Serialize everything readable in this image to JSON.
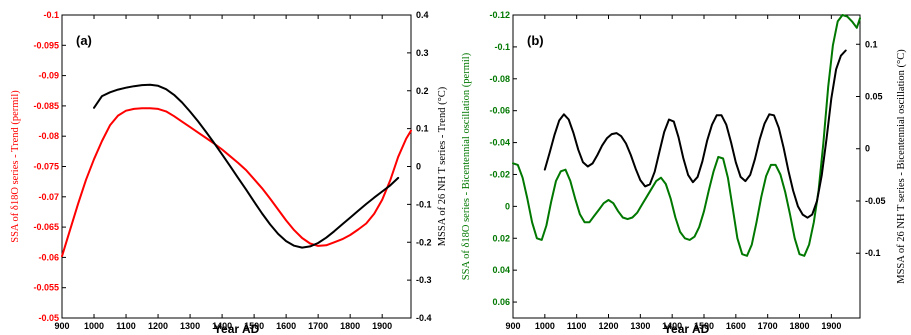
{
  "chart_data": [
    {
      "type": "line",
      "panel_label": "(a)",
      "xlabel": "Year AD",
      "ylabel_left": "SSA of δ18O series - Trend (permil)",
      "ylabel_right": "MSSA of 26 NH T series - Trend (°C)",
      "x_range": [
        900,
        1990
      ],
      "xticks": [
        900,
        1000,
        1100,
        1200,
        1300,
        1400,
        1500,
        1600,
        1700,
        1800,
        1900
      ],
      "xtick_labels": [
        "900",
        "1000",
        "1100",
        "1200",
        "1300",
        "1400",
        "1500",
        "1600",
        "1700",
        "1800",
        "1900"
      ],
      "left_axis": {
        "color": "#ff0000",
        "reversed": true,
        "ylim": [
          -0.1,
          -0.05
        ],
        "ticks": [
          -0.1,
          -0.095,
          -0.09,
          -0.085,
          -0.08,
          -0.075,
          -0.07,
          -0.065,
          -0.06,
          -0.055,
          -0.05
        ],
        "tick_labels": [
          "-0.1",
          "-0.095",
          "-0.09",
          "-0.085",
          "-0.08",
          "-0.075",
          "-0.07",
          "-0.065",
          "-0.06",
          "-0.055",
          "-0.05"
        ]
      },
      "right_axis": {
        "color": "#000000",
        "ylim": [
          -0.4,
          0.4
        ],
        "ticks": [
          -0.4,
          -0.3,
          -0.2,
          -0.1,
          0,
          0.1,
          0.2,
          0.3,
          0.4
        ],
        "tick_labels": [
          "-0.4",
          "-0.3",
          "-0.2",
          "-0.1",
          "0",
          "0.1",
          "0.2",
          "0.3",
          "0.4"
        ]
      },
      "series": [
        {
          "axis": "left",
          "color": "#ff0000",
          "x": [
            900,
            925,
            950,
            975,
            1000,
            1025,
            1050,
            1075,
            1100,
            1125,
            1150,
            1175,
            1200,
            1225,
            1250,
            1275,
            1300,
            1325,
            1350,
            1375,
            1400,
            1425,
            1450,
            1475,
            1500,
            1525,
            1550,
            1575,
            1600,
            1625,
            1650,
            1675,
            1700,
            1725,
            1750,
            1775,
            1800,
            1825,
            1850,
            1875,
            1900,
            1925,
            1950,
            1975,
            1990
          ],
          "y": [
            -0.0602,
            -0.0645,
            -0.0688,
            -0.0728,
            -0.0762,
            -0.0792,
            -0.0818,
            -0.0834,
            -0.0842,
            -0.0845,
            -0.0846,
            -0.0846,
            -0.0845,
            -0.0841,
            -0.0833,
            -0.0824,
            -0.0815,
            -0.0806,
            -0.0797,
            -0.0788,
            -0.0778,
            -0.0767,
            -0.0756,
            -0.0744,
            -0.0729,
            -0.0714,
            -0.0697,
            -0.0679,
            -0.0661,
            -0.0645,
            -0.0632,
            -0.0623,
            -0.0619,
            -0.062,
            -0.0625,
            -0.063,
            -0.0637,
            -0.0646,
            -0.0656,
            -0.0672,
            -0.0695,
            -0.0727,
            -0.0766,
            -0.0796,
            -0.0809
          ]
        },
        {
          "axis": "right",
          "color": "#000000",
          "x": [
            1000,
            1025,
            1050,
            1075,
            1100,
            1125,
            1150,
            1175,
            1200,
            1225,
            1250,
            1275,
            1300,
            1325,
            1350,
            1375,
            1400,
            1425,
            1450,
            1475,
            1500,
            1525,
            1550,
            1575,
            1600,
            1625,
            1650,
            1675,
            1700,
            1725,
            1750,
            1775,
            1800,
            1825,
            1850,
            1875,
            1900,
            1925,
            1950
          ],
          "y": [
            0.155,
            0.186,
            0.196,
            0.203,
            0.208,
            0.212,
            0.215,
            0.216,
            0.213,
            0.204,
            0.189,
            0.169,
            0.145,
            0.119,
            0.091,
            0.062,
            0.032,
            0.001,
            -0.03,
            -0.061,
            -0.093,
            -0.124,
            -0.153,
            -0.178,
            -0.197,
            -0.209,
            -0.214,
            -0.211,
            -0.202,
            -0.188,
            -0.171,
            -0.153,
            -0.135,
            -0.117,
            -0.099,
            -0.082,
            -0.066,
            -0.05,
            -0.03
          ]
        }
      ]
    },
    {
      "type": "line",
      "panel_label": "(b)",
      "xlabel": "Year AD",
      "ylabel_left": "SSA of δ18O series - Bicentennial oscillation (permil)",
      "ylabel_right": "MSSA of 26 NH T series - Bicentennial oscillation (°C)",
      "x_range": [
        900,
        1990
      ],
      "xticks": [
        900,
        1000,
        1100,
        1200,
        1300,
        1400,
        1500,
        1600,
        1700,
        1800,
        1900
      ],
      "xtick_labels": [
        "900",
        "1000",
        "1100",
        "1200",
        "1300",
        "1400",
        "1500",
        "1600",
        "1700",
        "1800",
        "1900"
      ],
      "left_axis": {
        "color": "#007800",
        "reversed": true,
        "ylim": [
          -0.12,
          0.07
        ],
        "ticks": [
          -0.12,
          -0.1,
          -0.08,
          -0.06,
          -0.04,
          -0.02,
          0,
          0.02,
          0.04,
          0.06
        ],
        "tick_labels": [
          "-0.12",
          "-0.1",
          "-0.08",
          "-0.06",
          "-0.04",
          "-0.02",
          "0",
          "0.02",
          "0.04",
          "0.06"
        ]
      },
      "right_axis": {
        "color": "#000000",
        "ylim": [
          -0.162,
          0.128
        ],
        "ticks": [
          -0.1,
          -0.05,
          0,
          0.05,
          0.1
        ],
        "tick_labels": [
          "-0.1",
          "-0.05",
          "0",
          "0.05",
          "0.1"
        ]
      },
      "series": [
        {
          "axis": "left",
          "color": "#007800",
          "x": [
            900,
            915,
            930,
            945,
            960,
            975,
            990,
            1005,
            1020,
            1035,
            1050,
            1065,
            1080,
            1095,
            1110,
            1125,
            1140,
            1155,
            1170,
            1185,
            1200,
            1215,
            1230,
            1245,
            1260,
            1275,
            1290,
            1305,
            1320,
            1335,
            1350,
            1365,
            1380,
            1395,
            1410,
            1425,
            1440,
            1455,
            1470,
            1485,
            1500,
            1515,
            1530,
            1545,
            1560,
            1575,
            1590,
            1605,
            1620,
            1635,
            1650,
            1665,
            1680,
            1695,
            1710,
            1725,
            1740,
            1755,
            1770,
            1785,
            1800,
            1815,
            1830,
            1845,
            1860,
            1875,
            1890,
            1905,
            1920,
            1935,
            1950,
            1965,
            1980,
            1990
          ],
          "y": [
            -0.027,
            -0.026,
            -0.018,
            -0.005,
            0.01,
            0.02,
            0.021,
            0.012,
            -0.003,
            -0.016,
            -0.022,
            -0.023,
            -0.016,
            -0.005,
            0.005,
            0.01,
            0.01,
            0.006,
            0.002,
            -0.002,
            -0.004,
            -0.002,
            0.003,
            0.007,
            0.008,
            0.007,
            0.004,
            -0.001,
            -0.006,
            -0.011,
            -0.016,
            -0.018,
            -0.014,
            -0.005,
            0.007,
            0.016,
            0.02,
            0.021,
            0.019,
            0.013,
            0.003,
            -0.01,
            -0.022,
            -0.031,
            -0.03,
            -0.018,
            0.001,
            0.02,
            0.03,
            0.031,
            0.024,
            0.01,
            -0.006,
            -0.019,
            -0.026,
            -0.026,
            -0.02,
            -0.009,
            0.005,
            0.02,
            0.03,
            0.031,
            0.024,
            0.01,
            -0.01,
            -0.04,
            -0.075,
            -0.101,
            -0.116,
            -0.12,
            -0.119,
            -0.116,
            -0.112,
            -0.118
          ]
        },
        {
          "axis": "right",
          "color": "#000000",
          "x": [
            1000,
            1015,
            1030,
            1045,
            1060,
            1075,
            1090,
            1105,
            1120,
            1135,
            1150,
            1165,
            1180,
            1195,
            1210,
            1225,
            1240,
            1255,
            1270,
            1285,
            1300,
            1315,
            1330,
            1345,
            1360,
            1375,
            1390,
            1405,
            1420,
            1435,
            1450,
            1465,
            1480,
            1495,
            1510,
            1525,
            1540,
            1555,
            1570,
            1585,
            1600,
            1615,
            1630,
            1645,
            1660,
            1675,
            1690,
            1705,
            1720,
            1735,
            1750,
            1765,
            1780,
            1795,
            1810,
            1825,
            1840,
            1855,
            1870,
            1885,
            1900,
            1915,
            1930,
            1945
          ],
          "y": [
            -0.02,
            -0.004,
            0.013,
            0.027,
            0.033,
            0.028,
            0.015,
            -0.001,
            -0.013,
            -0.017,
            -0.014,
            -0.006,
            0.003,
            0.01,
            0.014,
            0.015,
            0.012,
            0.005,
            -0.006,
            -0.019,
            -0.03,
            -0.036,
            -0.034,
            -0.022,
            -0.003,
            0.016,
            0.028,
            0.026,
            0.011,
            -0.009,
            -0.025,
            -0.032,
            -0.027,
            -0.012,
            0.008,
            0.023,
            0.032,
            0.032,
            0.023,
            0.006,
            -0.013,
            -0.027,
            -0.031,
            -0.025,
            -0.01,
            0.009,
            0.024,
            0.033,
            0.032,
            0.02,
            0.001,
            -0.021,
            -0.04,
            -0.055,
            -0.063,
            -0.066,
            -0.063,
            -0.05,
            -0.025,
            0.01,
            0.048,
            0.076,
            0.089,
            0.094
          ]
        }
      ]
    }
  ]
}
